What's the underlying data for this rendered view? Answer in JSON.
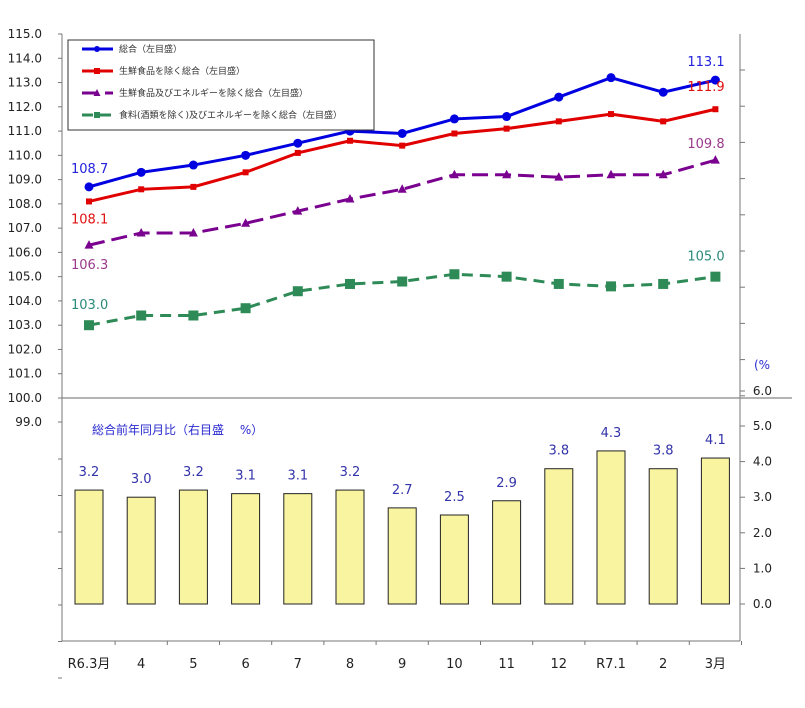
{
  "chart_data": [
    {
      "type": "line",
      "categories": [
        "R6.3月",
        "4",
        "5",
        "6",
        "7",
        "8",
        "9",
        "10",
        "11",
        "12",
        "R7.1",
        "2",
        "3月"
      ],
      "ylim": [
        100.0,
        115.0
      ],
      "yticks": [
        "115.0",
        "114.0",
        "113.0",
        "112.0",
        "111.0",
        "110.0",
        "109.0",
        "108.0",
        "107.0",
        "106.0",
        "105.0",
        "104.0",
        "103.0",
        "102.0",
        "101.0",
        "100.0"
      ],
      "legend_position": "top-left",
      "series": [
        {
          "name": "総合（左目盛）",
          "color": "#0000e0",
          "marker": "circle",
          "dash": "solid",
          "values": [
            108.7,
            109.3,
            109.6,
            110.0,
            110.5,
            111.0,
            110.9,
            111.5,
            111.6,
            112.4,
            113.2,
            112.6,
            113.1
          ],
          "labels": {
            "first": "108.7",
            "last": "113.1"
          }
        },
        {
          "name": "生鮮食品を除く総合（左目盛）",
          "color": "#e00000",
          "marker": "square",
          "dash": "solid",
          "values": [
            108.1,
            108.6,
            108.7,
            109.3,
            110.1,
            110.6,
            110.4,
            110.9,
            111.1,
            111.4,
            111.7,
            111.4,
            111.9
          ],
          "labels": {
            "first": "108.1",
            "last": "111.9"
          }
        },
        {
          "name": "生鮮食品及びエネルギーを除く総合（左目盛）",
          "color": "#7a0090",
          "marker": "triangle",
          "dash": "long",
          "values": [
            106.3,
            106.8,
            106.8,
            107.2,
            107.7,
            108.2,
            108.6,
            109.2,
            109.2,
            109.1,
            109.2,
            109.2,
            109.8
          ],
          "labels": {
            "first": "106.3",
            "last": "109.8"
          }
        },
        {
          "name": "食料(酒類を除く)及びエネルギーを除く総合（左目盛）",
          "color": "#2e8b57",
          "marker": "square-big",
          "dash": "medium",
          "values": [
            103.0,
            103.4,
            103.4,
            103.7,
            104.4,
            104.7,
            104.8,
            105.1,
            105.0,
            104.7,
            104.6,
            104.7,
            105.0
          ],
          "labels": {
            "first": "103.0",
            "last": "105.0"
          }
        }
      ]
    },
    {
      "type": "bar",
      "title": "総合前年同月比（右目盛　 %）",
      "categories": [
        "R6.3月",
        "4",
        "5",
        "6",
        "7",
        "8",
        "9",
        "10",
        "11",
        "12",
        "R7.1",
        "2",
        "3月"
      ],
      "values": [
        3.2,
        3.0,
        3.2,
        3.1,
        3.1,
        3.2,
        2.7,
        2.5,
        2.9,
        3.8,
        4.3,
        3.8,
        4.1
      ],
      "value_labels": [
        "3.2",
        "3.0",
        "3.2",
        "3.1",
        "3.1",
        "3.2",
        "2.7",
        "2.5",
        "2.9",
        "3.8",
        "4.3",
        "3.8",
        "4.1"
      ],
      "ylim": [
        0.0,
        6.0
      ],
      "yticks": [
        "6.0",
        "5.0",
        "4.0",
        "3.0",
        "2.0",
        "1.0",
        "0.0"
      ],
      "extra_left_tick": "99.0",
      "unit_label": "(%",
      "bar_color": "#f8f4a0"
    }
  ]
}
